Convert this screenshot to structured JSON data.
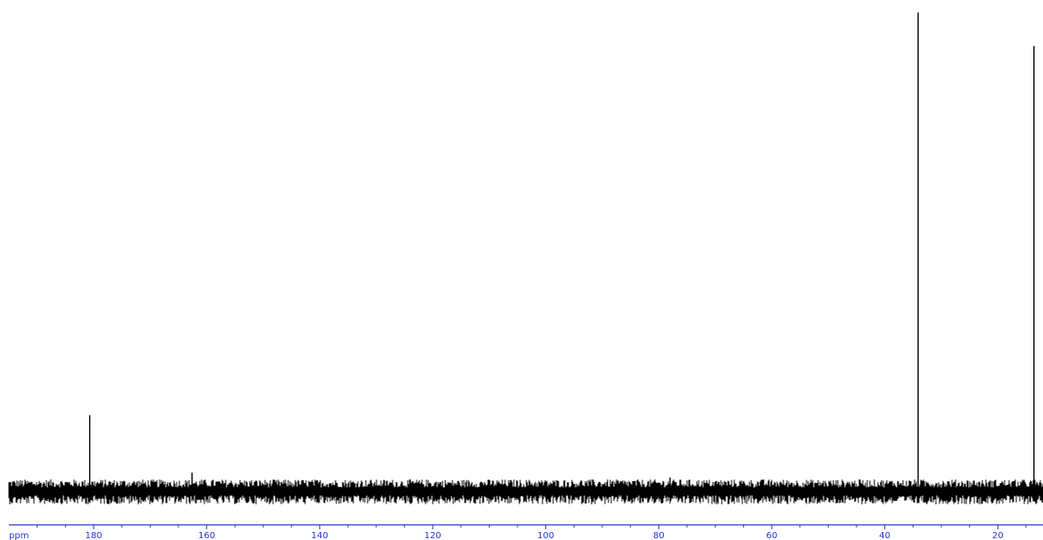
{
  "chart_data": {
    "type": "line",
    "xlabel": "ppm",
    "xlim": [
      195,
      12
    ],
    "x_ticks": [
      "180",
      "160",
      "140",
      "120",
      "100",
      "80",
      "60",
      "40",
      "20"
    ],
    "ylim": [
      -0.05,
      1.0
    ],
    "grid": false,
    "colors": {
      "trace": "#000000",
      "axis": "#2a34d6",
      "tick_labels": "#2a34d6"
    },
    "series": [
      {
        "peaks": [
          {
            "x": 180.7,
            "y": 0.16
          },
          {
            "x": 162.6,
            "y": 0.04
          },
          {
            "x": 78.0,
            "y": 0.03
          },
          {
            "x": 34.1,
            "y": 1.0
          },
          {
            "x": 13.6,
            "y": 0.93
          }
        ]
      }
    ]
  }
}
